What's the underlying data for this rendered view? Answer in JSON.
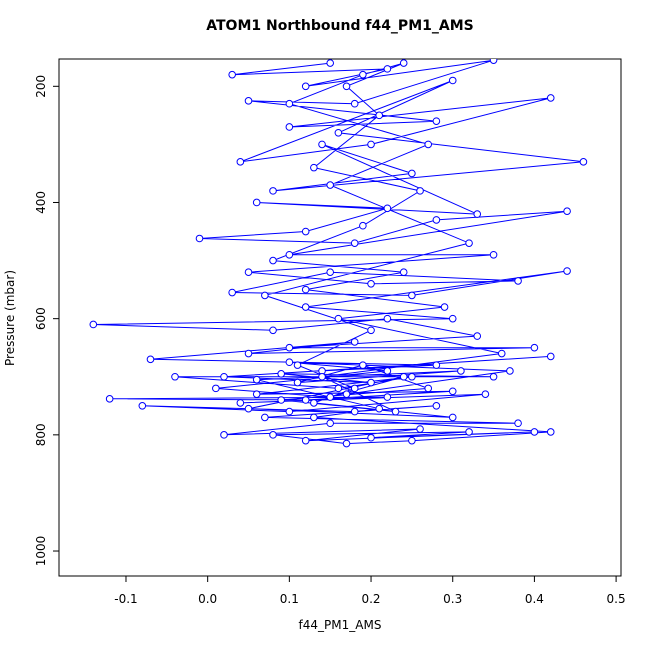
{
  "chart_data": {
    "type": "line",
    "title": "ATOM1 Northbound f44_PM1_AMS",
    "x_label": "f44_PM1_AMS",
    "y_label": "Pressure (mbar)",
    "color": "#0000ff",
    "xlim": [
      -0.182,
      0.506
    ],
    "ylim": [
      1043,
      153
    ],
    "xticks": [
      -0.1,
      {
        "value": 0,
        "label": "0.0"
      },
      0.1,
      0.2,
      0.3,
      0.4,
      0.5
    ],
    "yticks": [
      200,
      400,
      600,
      800,
      1000
    ],
    "x": [
      0.15,
      0.03,
      0.22,
      0.12,
      0.35,
      0.18,
      0.05,
      0.28,
      0.1,
      0.42,
      0.2,
      0.04,
      0.3,
      0.16,
      0.46,
      0.08,
      0.25,
      0.14,
      0.33,
      0.06,
      0.22,
      0.12,
      -0.01,
      0.18,
      0.28,
      0.44,
      0.1,
      0.35,
      0.05,
      0.2,
      0.38,
      0.15,
      0.03,
      0.25,
      0.44,
      0.12,
      0.3,
      -0.14,
      0.08,
      0.22,
      0.33,
      0.1,
      0.4,
      0.05,
      0.18,
      -0.07,
      0.28,
      0.14,
      0.42,
      0.02,
      0.2,
      0.09,
      0.35,
      -0.04,
      0.16,
      0.25,
      0.06,
      0.3,
      0.12,
      -0.12,
      0.22,
      0.04,
      0.34,
      0.1,
      -0.08,
      0.18,
      0.28,
      0.07,
      0.38,
      0.15,
      0.02,
      0.26,
      0.12,
      0.4,
      0.2,
      0.32,
      0.08,
      0.17,
      0.25,
      0.42,
      0.13,
      0.21,
      0.06,
      0.31,
      0.11,
      0.19,
      0.27,
      0.09,
      0.23,
      0.14,
      0.36,
      0.16,
      0.29,
      0.12,
      0.24,
      0.08,
      0.19,
      0.26,
      0.13,
      0.21,
      0.17,
      0.24,
      0.19,
      0.1,
      0.27,
      0.15,
      0.32,
      0.07,
      0.2,
      0.11,
      0.18,
      0.13,
      0.3,
      0.05,
      0.24,
      0.15,
      0.01,
      0.22,
      0.1,
      0.37,
      0.17
    ],
    "values": [
      160,
      180,
      170,
      200,
      155,
      230,
      225,
      260,
      270,
      220,
      300,
      330,
      190,
      280,
      330,
      380,
      350,
      300,
      420,
      400,
      410,
      450,
      462,
      470,
      430,
      415,
      490,
      490,
      520,
      540,
      535,
      520,
      555,
      560,
      518,
      580,
      600,
      610,
      620,
      600,
      630,
      650,
      650,
      660,
      640,
      670,
      680,
      690,
      665,
      700,
      710,
      695,
      700,
      700,
      720,
      700,
      730,
      725,
      740,
      738,
      735,
      745,
      730,
      760,
      750,
      760,
      750,
      770,
      780,
      780,
      800,
      790,
      810,
      795,
      805,
      795,
      800,
      815,
      810,
      795,
      770,
      755,
      705,
      690,
      710,
      680,
      720,
      740,
      760,
      700,
      660,
      600,
      580,
      550,
      520,
      500,
      440,
      380,
      340,
      250,
      200,
      160,
      180,
      230,
      300,
      370,
      470,
      560,
      620,
      680,
      720,
      745,
      770,
      755,
      700,
      735,
      720,
      690,
      675,
      690,
      730
    ]
  }
}
